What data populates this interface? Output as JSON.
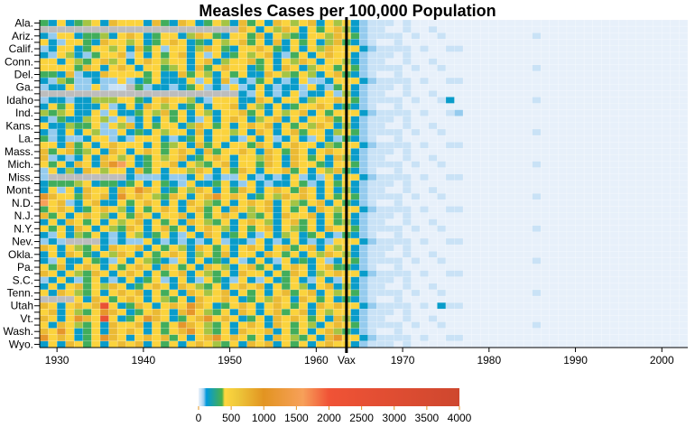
{
  "chart_data": {
    "type": "heatmap",
    "title": "Measles Cases per 100,000 Population",
    "x_start_year": 1928,
    "x_end_year": 2002,
    "x_ticks": [
      "1930",
      "1940",
      "1950",
      "1960",
      "1970",
      "1980",
      "1990",
      "2000"
    ],
    "x_tick_values": [
      1930,
      1940,
      1950,
      1960,
      1970,
      1980,
      1990,
      2000
    ],
    "annotation": {
      "label": "Vax",
      "year": 1963
    },
    "row_labels": [
      "Ala.",
      "",
      "Ariz.",
      "",
      "Calif.",
      "",
      "Conn.",
      "",
      "Del.",
      "",
      "Ga.",
      "",
      "Idaho",
      "",
      "Ind.",
      "",
      "Kans.",
      "",
      "La.",
      "",
      "Mass.",
      "",
      "Mich.",
      "",
      "Miss.",
      "",
      "Mont.",
      "",
      "N.D.",
      "",
      "N.J.",
      "",
      "N.Y.",
      "",
      "Nev.",
      "",
      "Okla.",
      "",
      "Pa.",
      "",
      "S.C.",
      "",
      "Tenn.",
      "",
      "Utah",
      "",
      "Vt.",
      "",
      "Wash.",
      "",
      "Wyo."
    ],
    "value_codes": {
      "a": 0,
      "b": 40,
      "c": 80,
      "d": 150,
      "e": 330,
      "f": 380,
      "g": 450,
      "h": 700,
      "i": 1100,
      "j": 1600,
      "k": 2400,
      "-": null
    },
    "rows_pre_vax": [
      "edgdefgdhgggdhedhgdegfdhegdhgfghdgf",
      "-----------------------hgdgfhgdgegh",
      "dcggdeefdghgdeggdfhgedggehdgfedggfh",
      "gdcggedhggfgdeghgdedgfghegdhdgegdfh",
      "cdggdeggfgdhegcggdfhgedgghgedgdgfhg",
      "dcgfdceggh cgdgeghdgcgdegfghdcegdghg",
      "ggdgfeghfgdghgfggdghdfgghegdgfhgdgg",
      "ggggehgdghgdggefgdheghggdegdhgdfgge",
      "eedhcddhggggegddhegfdgegddhgfegfdgh",
      "dcfeccdccgcdegdddgcgdhcdcegdcdgccdg",
      "cddgccgcbb-ecddcdegcdcgcdgdcddcgdce",
      "-----------------------dcgdcdgcddgc",
      "cddcddfffggedghggfdcgggddhgdggdfggh",
      "dgegdddgcdgdhgfgdegdgghdgfdgdegghgd",
      "fefgddgcgddegfhegdgfdgghegdgfghdgeg",
      "dceddfgfcgcdgdgegdcgdghgdfghdgdgghe",
      "gddfeegcgfhdgeggdfhgegdghghdgegfhgd",
      "dcdgdgfccgdedgfggdhdggfgdhgdgheggdf",
      "ecdccdggcdcgggdcdegdggdcgdgcdgdcgdc",
      "ggdhegdghgggdgefgdhegdggehgdghggdfe",
      "heghefgdhgdghgeghgdheggh gdhgehgdghg",
      "hcdcdgdhgfgdegfghdeghgdggfhgdhgegdh",
      "gegdhgdhijgdegghdgfeghdggehgdhggedg",
      "cgdfdhgfggdhegdggfhgdgehgdgghegdgfh",
      "c---------dcccdccdgcdccgdcdcdgcdcgdc",
      "deeefgdeedegdgedcgddegdcgdcddgecdge",
      "dgcgdhggdhgihgdegfhgdgehgdghgehgdg",
      "ihggehghdighgfehgdghighgdegfhghgdge",
      "jghcdghddgeghgdgdhgfegdghghdgfeghdg",
      "eghgdeghgfdgeghgdghegdhgfghdgegdhgf",
      "hegdghgfdgehgdgghdgeghgdfegdhgghdge",
      "dgdhgegdgfghdgegdhgfegdghgfdghegdge",
      "gegdhgdgfehgdghegdghgfdgeghdgfegdhg",
      "dcgdfegdcdgfdegdcgdhgdegdcgdfgdegdc",
      "cdc----dcdccgdcdcdcdgcddcgdcdgdcdcg",
      "hgdgfegdhgghdgegfdhgegdghgdgheghdgf",
      "dgdhgedgfhgdgeghgdfgehdggdhgegdgfhg",
      "dcgddgedcgdgfedcgdgdedgcdgdcgdedgcd",
      "gehdghgdgeghgdhgegdhgfdghegdghgdghe",
      "hgdgfehgdghgdgeghdgfegdhggdgehgdfgh",
      "cdgdcegdcdgdegcdgdcgedcgdcgdegdcgdc",
      "dgdghegfhgdeghgdhgfegdghghdgegfdgh",
      "gdhgfegdghghdgegdhgfghdgegdgheghdgf",
      "----gdhgeghgdgfegdhgghgdegfhgdhgegd",
      "hgdghghkgdehgdghgihgdeghgdghgegdhg",
      "ghdgfegihgdeghgdhigfegdhgdgheghdgf",
      "hgdgihgkgdegihgdeghighgdegdhghgegd",
      "gdhgfegdhgghdgegihgfegdghgdhgegfdgh",
      "hgigdegdhghgdgeghigfegdhgghdgegdghf",
      "ighgdegihgdghghegdghighgegdhgfegdhi",
      "dgdhgegdghghdgegdghgfegdhghdgegdghg"
    ],
    "rows_post_vax": [
      "gdcbbbabaaaaaaaaaaaaaaaaaaaaaaaaaaaaaaaa",
      "fdcbbaabaabaaaaaaaaaaaaaaaaaaaaaaaaaaaaa",
      "gecbbbbabaabaaaaaaaaaabaaaaaaaaaaaaaaaaa",
      "edcbaabaaaaaaaaaaaaaaaaaaaaaaaaaaaaaaaaa",
      "ggdcbbbbabaabbaaaaaaaaaaaaaaaaaaaaaaaaaa",
      "gdcbbbabaaaaaaaaaaaaaaaaaaaaaaaaaaaaaaaa",
      "fdcbbaabaabaaaaaaaaaaaaaaaaaaaaaaaaaaaaa",
      "gecbbbbabaabaaaaaaaaaabaaaaaaaaaaaaaaaaa",
      "edcbaabaaaaaaaaaaaaaaaaaaaaaaaaaaaaaaaaa",
      "ggdcbbbbabaabbaaaaaaaaaaaaaaaaaaaaaaaaaa",
      "gdcbbbabaaaaaaaaaaaaaaaaaaaaaaaaaaaaaaaa",
      "fdcbbaabaabaaaaaaaaaaaaaaaaaaaaaaaaaaaaa",
      "gecbbbbabaabdaaaaaaaaabaaaaaaaaaaaaaaaaa",
      "edcbaabaaaaaaaaaaaaaaaaaaaaaaaaaaaaaaaaa",
      "ggdcbbbbabaabcaaaaaaaaaaaaaaaaaaaaaaaaaa",
      "gdcbbbabaaaaaaaaaaaaaaaaaaaaaaaaaaaaaaaa",
      "fdcbbaabaabaaaaaaaaaaaaaaaaaaaaaaaaaaaaa",
      "gecbbbbabaabaaaaaaaaaabaaaaaaaaaaaaaaaaa",
      "edcbaabaaaaaaaaaaaaaaaaaaaaaaaaaaaaaaaaa",
      "ggdcbbbbabaabbaaaaaaaaaaaaaaaaaaaaaaaaaa",
      "gdcbbbabaaaaaaaaaaaaaaaaaaaaaaaaaaaaaaaa",
      "fdcbbaabaabaaaaaaaaaaaaaaaaaaaaaaaaaaaaa",
      "gecbbbbabaabaaaaaaaaaabaaaaaaaaaaaaaaaaa",
      "edcbaabaaaaaaaaaaaaaaaaaaaaaaaaaaaaaaaaa",
      "ggdcbbbbabaabbaaaaaaaaaaaaaaaaaaaaaaaaaa",
      "gdcbbbabaaaaaaaaaaaaaaaaaaaaaaaaaaaaaaaa",
      "fdcbbaabaabaaaaaaaaaaaaaaaaaaaaaaaaaaaaa",
      "gecbbbbabaabaaaaaaaaaabaaaaaaaaaaaaaaaaa",
      "edcbaabaaaaaaaaaaaaaaaaaaaaaaaaaaaaaaaaa",
      "ggdcbbbbabaabbaaaaaaaaaaaaaaaaaaaaaaaaaa",
      "gdcbbbabaaaaaaaaaaaaaaaaaaaaaaaaaaaaaaaa",
      "fdcbbaabaabaaaaaaaaaaaaaaaaaaaaaaaaaaaaa",
      "gecbbbbabaabaaaaaaaaaabaaaaaaaaaaaaaaaaa",
      "edcbaabaaaaaaaaaaaaaaaaaaaaaaaaaaaaaaaaa",
      "ggdcbbbbabaabbaaaaaaaaaaaaaaaaaaaaaaaaaa",
      "gdcbbbabaaaaaaaaaaaaaaaaaaaaaaaaaaaaaaaa",
      "fdcbbaabaabaaaaaaaaaaaaaaaaaaaaaaaaaaaaa",
      "gecbbbbabaabaaaaaaaaaabaaaaaaaaaaaaaaaaa",
      "edcbaabaaaaaaaaaaaaaaaaaaaaaaaaaaaaaaaaa",
      "ggdcbbbbabaabbaaaaaaaaaaaaaaaaaaaaaaaaaa",
      "gdcbbbabaaaaaaaaaaaaaaaaaaaaaaaaaaaaaaaa",
      "fdcbbaabaabaaaaaaaaaaaaaaaaaaaaaaaaaaaaa",
      "gecbbbbabaabaaaaaaaaaabaaaaaaaaaaaaaaaaa",
      "edcbaabaaaaaaaaaaaaaaaaaaaaaaaaaaaaaaaaa",
      "ggdcbbbbabadbbaaaaaaaaaaaaaaaaaaaaaaaaaa",
      "gdcbbbabaaaaaaaaaaaaaaaaaaaaaaaaaaaaaaaa",
      "fdcbbaabaabaaaaaaaaaaaaaaaaaaaaaaaaaaaaa",
      "gecbbbbabaabaaaaaaaaaabaaaaaaaaaaaaaaaaa",
      "edcbaabaaaaaaaaaaaaaaaaaaaaaaaaaaaaaaaaa",
      "ggdcbbbbabaabbaaaaaaaaaaaaaaaaaaaaaaaaaa",
      "gdcbbbabaaaaaaaaaaaaaaaaaaaaaaaaaaaaaaaa"
    ],
    "missing_color": "#bdbdbd",
    "color_scale": {
      "domain": [
        0,
        40,
        80,
        120,
        360,
        400,
        600,
        1000,
        1600,
        2000,
        4000
      ],
      "colors": [
        "#e7f0fa",
        "#c9e2f6",
        "#95cbee",
        "#0099dc",
        "#4ab04a",
        "#ffd73e",
        "#eec73a",
        "#e29421",
        "#f7a05a",
        "#f05336",
        "#ce472e"
      ]
    },
    "legend": {
      "ticks": [
        "0",
        "500",
        "1000",
        "1500",
        "2000",
        "2500",
        "3000",
        "3500",
        "4000"
      ],
      "tick_values": [
        0,
        500,
        1000,
        1500,
        2000,
        2500,
        3000,
        3500,
        4000
      ],
      "range": [
        0,
        4000
      ]
    }
  }
}
